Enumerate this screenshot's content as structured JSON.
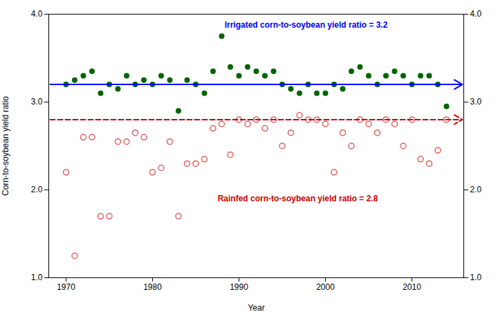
{
  "chart_data": {
    "type": "scatter",
    "title": "",
    "xlabel": "Year",
    "ylabel": "Corn-to-soybean yield ratio",
    "xlim": [
      1968,
      2016
    ],
    "ylim": [
      1.0,
      4.0
    ],
    "xticks": [
      1970,
      1980,
      1990,
      2000,
      2010
    ],
    "yticks": [
      {
        "value": 1.0,
        "label": "1.0"
      },
      {
        "value": 2.0,
        "label": "2.0"
      },
      {
        "value": 3.0,
        "label": "3.0"
      },
      {
        "value": 4.0,
        "label": "4.0"
      }
    ],
    "y2lim": [
      1.0,
      4.0
    ],
    "y2ticks": [
      {
        "value": 1.0,
        "label": "1.0"
      },
      {
        "value": 2.0,
        "label": "2.0"
      },
      {
        "value": 3.0,
        "label": "3.0"
      },
      {
        "value": 4.0,
        "label": "4.0"
      }
    ],
    "grid": false,
    "x": [
      1970,
      1971,
      1972,
      1973,
      1974,
      1975,
      1976,
      1977,
      1978,
      1979,
      1980,
      1981,
      1982,
      1983,
      1984,
      1985,
      1986,
      1987,
      1988,
      1989,
      1990,
      1991,
      1992,
      1993,
      1994,
      1995,
      1996,
      1997,
      1998,
      1999,
      2000,
      2001,
      2002,
      2003,
      2004,
      2005,
      2006,
      2007,
      2008,
      2009,
      2010,
      2011,
      2012,
      2013,
      2014
    ],
    "series": [
      {
        "color": "#006400",
        "marker": "circle",
        "values": [
          3.2,
          3.25,
          3.3,
          3.35,
          3.1,
          3.2,
          3.15,
          3.3,
          3.2,
          3.25,
          3.2,
          3.3,
          3.25,
          2.9,
          3.25,
          3.2,
          3.1,
          3.35,
          3.75,
          3.4,
          3.3,
          3.4,
          3.35,
          3.3,
          3.35,
          3.2,
          3.15,
          3.1,
          3.2,
          3.1,
          3.1,
          3.2,
          3.15,
          3.35,
          3.4,
          3.3,
          3.2,
          3.3,
          3.35,
          3.3,
          3.2,
          3.3,
          3.3,
          3.2,
          2.95
        ]
      },
      {
        "color": "#e06060",
        "marker": "open_circle",
        "values": [
          2.2,
          1.25,
          2.6,
          2.6,
          1.7,
          1.7,
          2.55,
          2.55,
          2.65,
          2.6,
          2.2,
          2.25,
          2.55,
          1.7,
          2.3,
          2.3,
          2.35,
          2.7,
          2.75,
          2.4,
          2.8,
          2.75,
          2.8,
          2.7,
          2.8,
          2.5,
          2.65,
          2.85,
          2.8,
          2.8,
          2.75,
          2.2,
          2.65,
          2.5,
          2.8,
          2.75,
          2.65,
          2.8,
          2.75,
          2.5,
          2.8,
          2.35,
          2.3,
          2.45,
          2.8
        ]
      }
    ],
    "annotations": [
      {
        "y": 3.2,
        "text": "Irrigated corn-to-soybean yield ratio = 3.2",
        "color": "#0000ff",
        "line_style": "solid"
      },
      {
        "y": 2.8,
        "text": "Rainfed corn-to-soybean yield ratio = 2.8",
        "color": "#cc0000",
        "line_style": "dashed"
      }
    ]
  }
}
